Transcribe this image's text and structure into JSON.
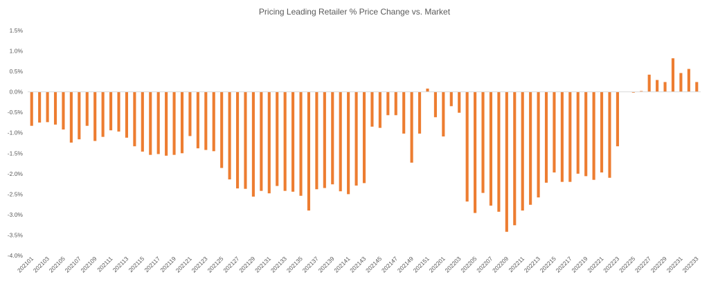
{
  "chart_data": {
    "type": "bar",
    "title": "Pricing Leading Retailer % Price Change vs. Market",
    "xlabel": "",
    "ylabel": "",
    "ylim": [
      -4.0,
      1.5
    ],
    "yticks": [
      1.5,
      1.0,
      0.5,
      0.0,
      -0.5,
      -1.0,
      -1.5,
      -2.0,
      -2.5,
      -3.0,
      -3.5,
      -4.0
    ],
    "ytick_labels": [
      "1.5%",
      "1.0%",
      "0.5%",
      "0.0%",
      "-0.5%",
      "-1.0%",
      "-1.5%",
      "-2.0%",
      "-2.5%",
      "-3.0%",
      "-3.5%",
      "-4.0%"
    ],
    "grid": false,
    "color": "#ED7D31",
    "categories": [
      "202101",
      "202102",
      "202103",
      "202104",
      "202105",
      "202106",
      "202107",
      "202108",
      "202109",
      "202110",
      "202111",
      "202112",
      "202113",
      "202114",
      "202115",
      "202116",
      "202117",
      "202118",
      "202119",
      "202120",
      "202121",
      "202122",
      "202123",
      "202124",
      "202125",
      "202126",
      "202127",
      "202128",
      "202129",
      "202130",
      "202131",
      "202132",
      "202133",
      "202134",
      "202135",
      "202136",
      "202137",
      "202138",
      "202139",
      "202140",
      "202141",
      "202142",
      "202143",
      "202144",
      "202145",
      "202146",
      "202147",
      "202148",
      "202149",
      "202150",
      "202151",
      "202152",
      "202201",
      "202202",
      "202203",
      "202204",
      "202205",
      "202206",
      "202207",
      "202208",
      "202209",
      "202210",
      "202211",
      "202212",
      "202213",
      "202214",
      "202215",
      "202216",
      "202217",
      "202218",
      "202219",
      "202220",
      "202221",
      "202222",
      "202223",
      "202224",
      "202225",
      "202226",
      "202227",
      "202228",
      "202229",
      "202230",
      "202231",
      "202232",
      "202233"
    ],
    "tick_labels_shown": [
      "202101",
      "202103",
      "202105",
      "202107",
      "202109",
      "202111",
      "202113",
      "202115",
      "202117",
      "202119",
      "202121",
      "202123",
      "202125",
      "202127",
      "202129",
      "202131",
      "202133",
      "202135",
      "202137",
      "202139",
      "202141",
      "202143",
      "202145",
      "202147",
      "202149",
      "202151",
      "202201",
      "202203",
      "202205",
      "202207",
      "202209",
      "202211",
      "202213",
      "202215",
      "202217",
      "202219",
      "202221",
      "202223",
      "202225",
      "202227",
      "202229",
      "202231",
      "202233"
    ],
    "values": [
      -0.83,
      -0.75,
      -0.74,
      -0.8,
      -0.92,
      -1.24,
      -1.16,
      -0.83,
      -1.2,
      -1.1,
      -0.94,
      -0.97,
      -1.12,
      -1.33,
      -1.46,
      -1.54,
      -1.52,
      -1.56,
      -1.54,
      -1.5,
      -1.08,
      -1.38,
      -1.42,
      -1.45,
      -1.86,
      -2.14,
      -2.36,
      -2.37,
      -2.56,
      -2.42,
      -2.48,
      -2.3,
      -2.42,
      -2.44,
      -2.54,
      -2.9,
      -2.38,
      -2.35,
      -2.26,
      -2.43,
      -2.5,
      -2.29,
      -2.23,
      -0.85,
      -0.88,
      -0.57,
      -0.57,
      -1.02,
      -1.73,
      -1.02,
      0.08,
      -0.62,
      -1.09,
      -0.35,
      -0.51,
      -2.68,
      -2.96,
      -2.47,
      -2.78,
      -2.93,
      -3.42,
      -3.26,
      -2.9,
      -2.76,
      -2.58,
      -2.22,
      -1.97,
      -2.2,
      -2.2,
      -2.0,
      -2.06,
      -2.15,
      -1.97,
      -2.1,
      -1.33,
      0.0,
      -0.02,
      0.02,
      0.42,
      0.29,
      0.24,
      0.82,
      0.46,
      0.56,
      0.24
    ]
  }
}
